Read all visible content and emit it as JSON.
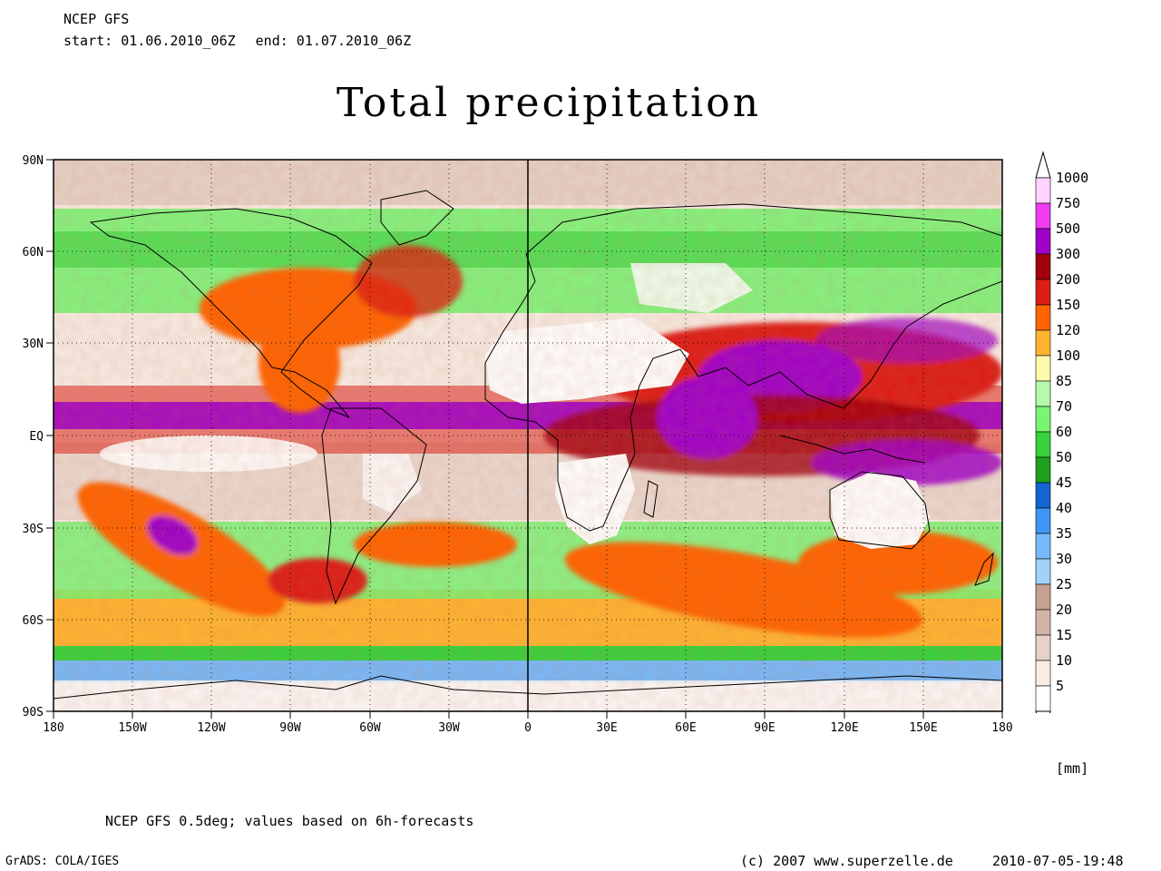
{
  "header": {
    "source": "NCEP GFS",
    "start_label": "start: 01.06.2010_06Z",
    "end_label": "end: 01.07.2010_06Z"
  },
  "title": "Total precipitation",
  "map": {
    "projection": "equirectangular",
    "longitude_labels": [
      "180",
      "150W",
      "120W",
      "90W",
      "60W",
      "30W",
      "0",
      "30E",
      "60E",
      "90E",
      "120E",
      "150E",
      "180"
    ],
    "latitude_labels": [
      "90N",
      "60N",
      "30N",
      "EQ",
      "30S",
      "60S",
      "90S"
    ],
    "lon_range": [
      -180,
      180
    ],
    "lat_range": [
      -90,
      90
    ],
    "gridlines": "dotted at 30 degree intervals"
  },
  "colorbar": {
    "unit": "[mm]",
    "levels": [
      "1000",
      "750",
      "500",
      "300",
      "200",
      "150",
      "120",
      "100",
      "85",
      "70",
      "60",
      "50",
      "45",
      "40",
      "35",
      "30",
      "25",
      "20",
      "15",
      "10",
      "5"
    ],
    "colors": [
      "#ffd2ff",
      "#ee3cf0",
      "#a000c8",
      "#a0000a",
      "#dc1e14",
      "#ff6400",
      "#ffb432",
      "#fffaaa",
      "#b4faaa",
      "#78f573",
      "#37d23c",
      "#1ea01e",
      "#1464d2",
      "#3c96f5",
      "#78b9fa",
      "#a0d2fa",
      "#c8a090",
      "#d2b4aa",
      "#e6d2c8",
      "#f8ece4",
      "#ffffff"
    ]
  },
  "footer": {
    "note": "NCEP GFS 0.5deg; values based on 6h-forecasts",
    "software": "GrADS: COLA/IGES",
    "copyright": "(c) 2007 www.superzelle.de",
    "timestamp": "2010-07-05-19:48"
  }
}
